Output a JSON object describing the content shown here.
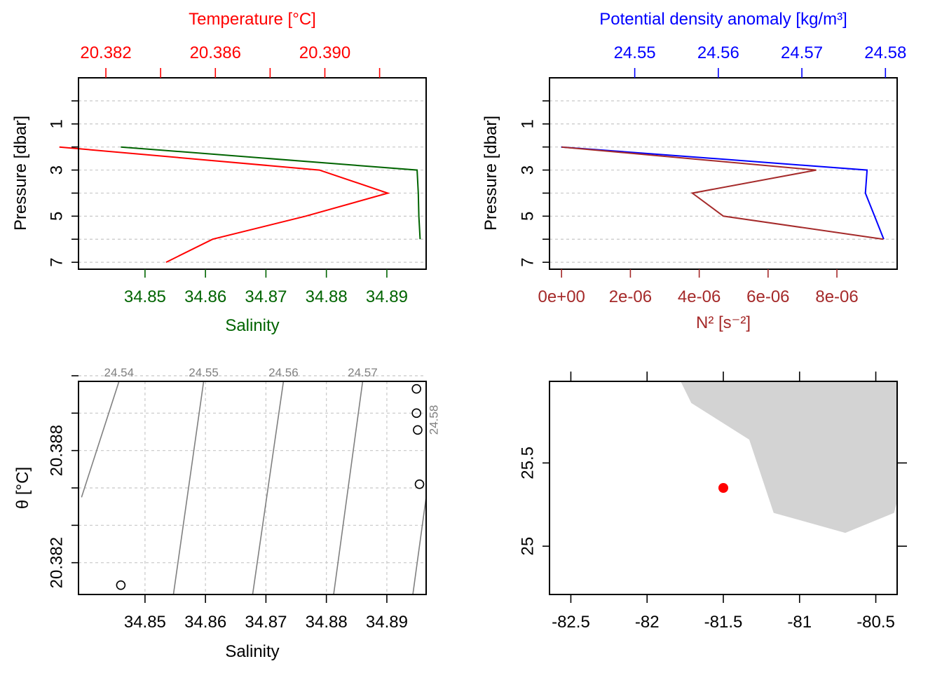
{
  "chart_data": [
    {
      "type": "line",
      "name": "profile-temperature-salinity",
      "ylabel": "Pressure [dbar]",
      "yrange": [
        7.3,
        -1.0
      ],
      "yticks": [
        1,
        3,
        5,
        7
      ],
      "grid": true,
      "top_axis": {
        "label": "Temperature [°C]",
        "color": "#ff0000",
        "range": [
          20.381,
          20.3937
        ],
        "major_ticks": [
          20.382,
          20.386,
          20.39
        ],
        "minor_ticks": [
          20.384,
          20.388,
          20.392
        ]
      },
      "bottom_axis": {
        "label": "Salinity",
        "color": "#006400",
        "range": [
          34.839,
          34.8965
        ],
        "ticks": [
          34.85,
          34.86,
          34.87,
          34.88,
          34.89
        ]
      },
      "series": [
        {
          "axis": "top",
          "color": "#ff0000",
          "points": [
            [
              2,
              20.3803
            ],
            [
              3,
              20.3898
            ],
            [
              4,
              20.3923
            ],
            [
              5,
              20.3893
            ],
            [
              6,
              20.3859
            ],
            [
              7,
              20.3842
            ]
          ]
        },
        {
          "axis": "bottom",
          "color": "#006400",
          "points": [
            [
              2,
              34.846
            ],
            [
              3,
              34.895
            ],
            [
              4,
              34.8952
            ],
            [
              5,
              34.8953
            ],
            [
              6,
              34.8955
            ]
          ]
        }
      ]
    },
    {
      "type": "line",
      "name": "profile-density-n2",
      "ylabel": "Pressure [dbar]",
      "yrange": [
        7.3,
        -1.0
      ],
      "yticks": [
        1,
        3,
        5,
        7
      ],
      "grid": true,
      "top_axis": {
        "label": "Potential density anomaly [kg/m³]",
        "color": "#0000ff",
        "range": [
          24.5398,
          24.5814
        ],
        "ticks": [
          24.55,
          24.56,
          24.57,
          24.58
        ],
        "tick_labels": [
          "24.55",
          "24.56",
          "24.57",
          "24.58"
        ]
      },
      "bottom_axis": {
        "label": "N² [s⁻²]",
        "color": "#a52a2a",
        "range": [
          -3.5e-07,
          9.75e-06
        ],
        "ticks": [
          0,
          2e-06,
          4e-06,
          6e-06,
          8e-06
        ],
        "tick_labels": [
          "0e+00",
          "2e-06",
          "4e-06",
          "6e-06",
          "8e-06"
        ]
      },
      "series": [
        {
          "axis": "top",
          "color": "#0000ff",
          "points": [
            [
              2,
              24.5412
            ],
            [
              3,
              24.5778
            ],
            [
              4,
              24.5776
            ],
            [
              5,
              24.5787
            ],
            [
              6,
              24.5798
            ]
          ]
        },
        {
          "axis": "bottom",
          "color": "#a52a2a",
          "points": [
            [
              2,
              0
            ],
            [
              3,
              7.4e-06
            ],
            [
              4,
              3.8e-06
            ],
            [
              5,
              4.7e-06
            ],
            [
              6,
              9.35e-06
            ]
          ]
        }
      ]
    },
    {
      "type": "scatter",
      "name": "ts-diagram",
      "xlabel": "Salinity",
      "ylabel": "θ [°C]",
      "xrange": [
        34.839,
        34.8965
      ],
      "yrange": [
        20.3803,
        20.3917
      ],
      "xticks": [
        34.85,
        34.86,
        34.87,
        34.88,
        34.89
      ],
      "yticks": [
        20.382,
        20.388
      ],
      "grid_x": [
        34.85,
        34.86,
        34.87,
        34.88,
        34.89
      ],
      "grid_y": [
        20.382,
        20.384,
        20.386,
        20.388,
        20.39,
        20.392
      ],
      "points": [
        [
          34.846,
          20.3808
        ],
        [
          34.8949,
          20.3913
        ],
        [
          34.8949,
          20.39
        ],
        [
          34.8951,
          20.3891
        ],
        [
          34.8954,
          20.3862
        ]
      ],
      "isopycnals": {
        "color": "#808080",
        "lines": [
          {
            "label": "24.54",
            "from": [
              34.8395,
              20.3855
            ],
            "to": [
              34.8457,
              20.3917
            ]
          },
          {
            "label": "24.55",
            "from": [
              34.8547,
              20.3803
            ],
            "to": [
              34.8597,
              20.3917
            ]
          },
          {
            "label": "24.56",
            "from": [
              34.8678,
              20.3803
            ],
            "to": [
              34.8729,
              20.3917
            ]
          },
          {
            "label": "24.57",
            "from": [
              34.8812,
              20.3803
            ],
            "to": [
              34.886,
              20.3917
            ]
          },
          {
            "label": "24.58",
            "from": [
              34.8943,
              20.3803
            ],
            "to": [
              34.8965,
              20.3855
            ]
          }
        ]
      }
    },
    {
      "type": "scatter",
      "name": "station-map",
      "xrange": [
        -82.64,
        -80.36
      ],
      "yrange": [
        24.71,
        25.99
      ],
      "xticks": [
        -82.5,
        -82,
        -81.5,
        -81,
        -80.5
      ],
      "yticks": [
        25,
        25.5
      ],
      "land_color": "#d3d3d3",
      "land_outline": [
        [
          -81.8,
          26.2
        ],
        [
          -81.78,
          25.99
        ],
        [
          -81.71,
          25.86
        ],
        [
          -81.33,
          25.64
        ],
        [
          -81.17,
          25.2
        ],
        [
          -80.7,
          25.08
        ],
        [
          -80.38,
          25.2
        ],
        [
          -80.36,
          25.27
        ],
        [
          -80.2,
          26.2
        ]
      ],
      "station": {
        "lon": -81.5,
        "lat": 25.35,
        "color": "#ff0000"
      }
    }
  ]
}
